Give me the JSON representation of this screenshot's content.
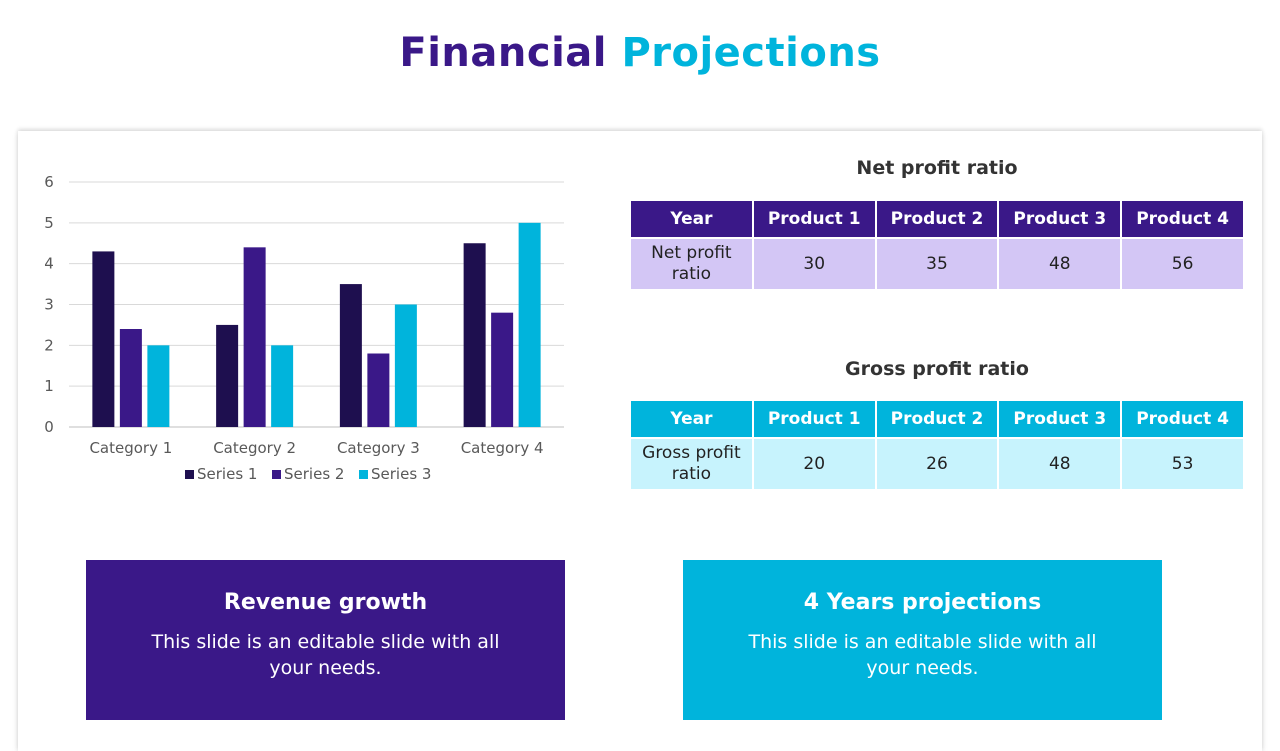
{
  "title": {
    "part1": "Financial",
    "part2": "Projections"
  },
  "net_table": {
    "title": "Net profit ratio",
    "headers": [
      "Year",
      "Product 1",
      "Product 2",
      "Product 3",
      "Product 4"
    ],
    "row": [
      "Net profit ratio",
      "30",
      "35",
      "48",
      "56"
    ]
  },
  "gross_table": {
    "title": "Gross profit ratio",
    "headers": [
      "Year",
      "Product 1",
      "Product 2",
      "Product 3",
      "Product 4"
    ],
    "row": [
      "Gross profit ratio",
      "20",
      "26",
      "48",
      "53"
    ]
  },
  "box_left": {
    "title": "Revenue growth",
    "text": "This slide is an editable slide with all your needs."
  },
  "box_right": {
    "title": "4 Years projections",
    "text": "This slide is an editable slide with all your needs."
  },
  "colors": {
    "series1": "#1e0f4f",
    "series2": "#3a1888",
    "series3": "#00b4dc"
  },
  "chart_data": {
    "type": "bar",
    "categories": [
      "Category 1",
      "Category 2",
      "Category 3",
      "Category 4"
    ],
    "series": [
      {
        "name": "Series 1",
        "values": [
          4.3,
          2.5,
          3.5,
          4.5
        ]
      },
      {
        "name": "Series 2",
        "values": [
          2.4,
          4.4,
          1.8,
          2.8
        ]
      },
      {
        "name": "Series 3",
        "values": [
          2,
          2,
          3,
          5
        ]
      }
    ],
    "ylim": [
      0,
      6
    ],
    "yticks": [
      0,
      1,
      2,
      3,
      4,
      5,
      6
    ],
    "grid": true,
    "legend": "bottom"
  }
}
